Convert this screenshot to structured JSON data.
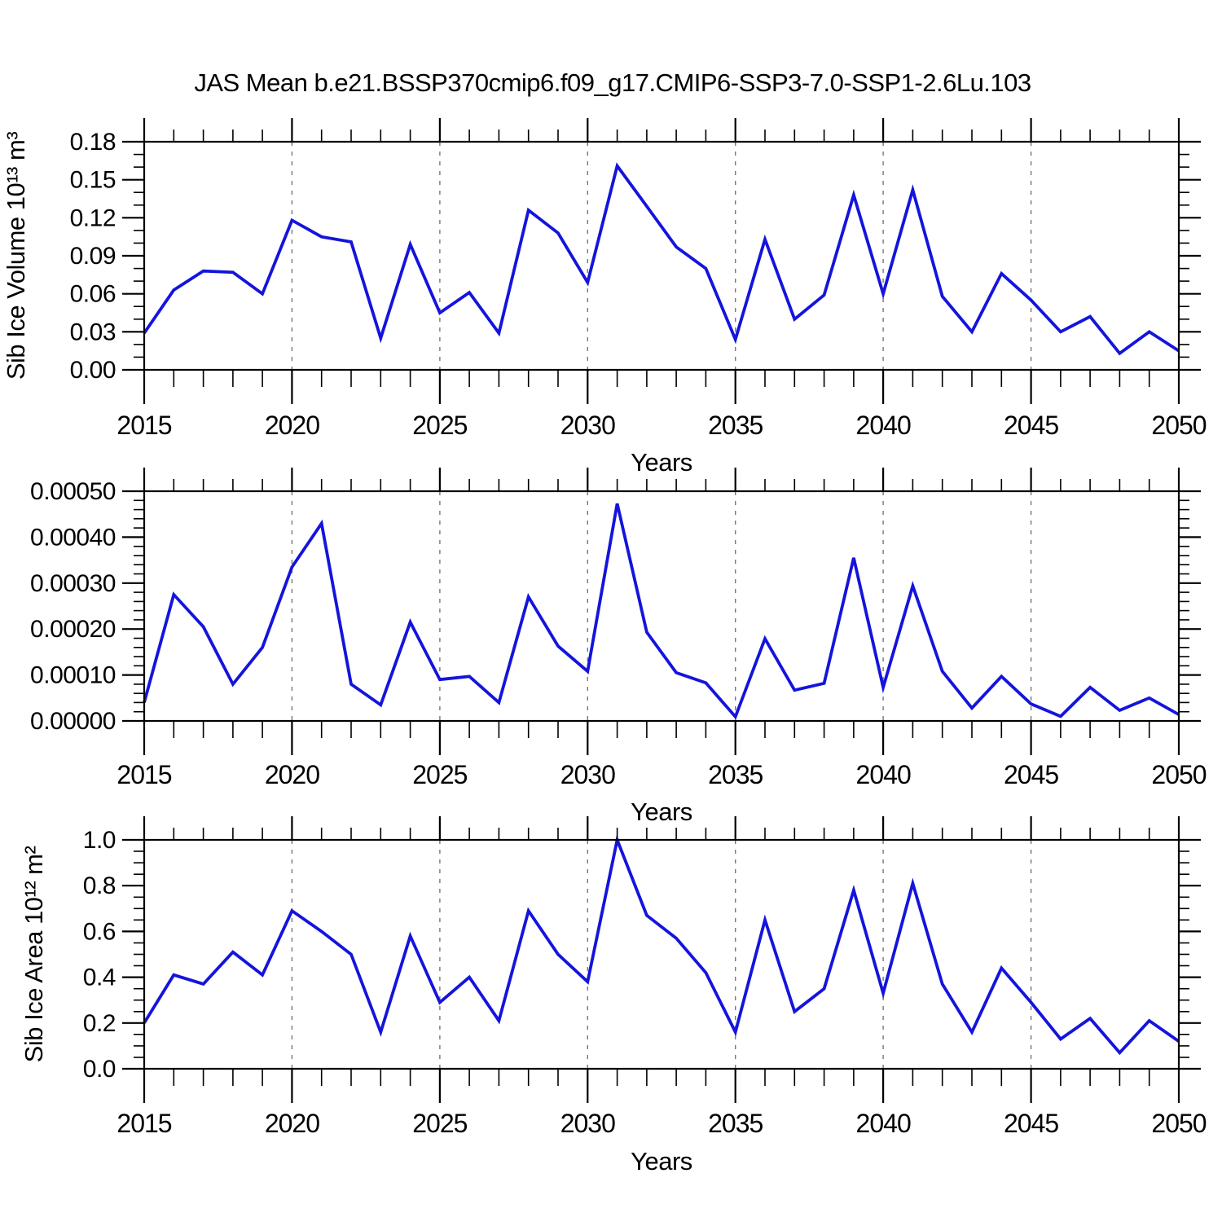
{
  "figure": {
    "title": "JAS Mean b.e21.BSSP370cmip6.f09_g17.CMIP6-SSP3-7.0-SSP1-2.6Lu.103"
  },
  "colors": {
    "line": "#1414DC",
    "grid": "#777777",
    "axis": "#000000",
    "background": "#ffffff",
    "text": "#000000"
  },
  "chart_data": [
    {
      "type": "line",
      "name": "sib-ice-volume",
      "title": "",
      "ylabel": "Sib Ice Volume 10¹³ m³",
      "xlabel": "Years",
      "xlim": [
        2015,
        2050
      ],
      "ylim": [
        0,
        0.18
      ],
      "ytick_values": [
        0.0,
        0.03,
        0.06,
        0.09,
        0.12,
        0.15,
        0.18
      ],
      "ytick_labels": [
        "0.00",
        "0.03",
        "0.06",
        "0.09",
        "0.12",
        "0.15",
        "0.18"
      ],
      "y_minor_step": 0.01,
      "xtick_values": [
        2015,
        2020,
        2025,
        2030,
        2035,
        2040,
        2045,
        2050
      ],
      "xtick_labels": [
        "2015",
        "2020",
        "2025",
        "2030",
        "2035",
        "2040",
        "2045",
        "2050"
      ],
      "x_minor_step": 1,
      "gridlines_x": [
        2020,
        2025,
        2030,
        2035,
        2040,
        2045
      ],
      "grid": "dashed-vertical",
      "legend": "none",
      "x": [
        2015,
        2016,
        2017,
        2018,
        2019,
        2020,
        2021,
        2022,
        2023,
        2024,
        2025,
        2026,
        2027,
        2028,
        2029,
        2030,
        2031,
        2032,
        2033,
        2034,
        2035,
        2036,
        2037,
        2038,
        2039,
        2040,
        2041,
        2042,
        2043,
        2044,
        2045,
        2046,
        2047,
        2048,
        2049,
        2050
      ],
      "values": [
        0.029,
        0.063,
        0.078,
        0.077,
        0.06,
        0.118,
        0.105,
        0.101,
        0.025,
        0.099,
        0.045,
        0.061,
        0.029,
        0.126,
        0.108,
        0.069,
        0.161,
        0.129,
        0.097,
        0.08,
        0.024,
        0.103,
        0.04,
        0.059,
        0.138,
        0.06,
        0.142,
        0.058,
        0.03,
        0.076,
        0.055,
        0.03,
        0.042,
        0.013,
        0.03,
        0.015
      ]
    },
    {
      "type": "line",
      "name": "sib-ice-middle-series",
      "title": "",
      "ylabel": "",
      "xlabel": "Years",
      "xlim": [
        2015,
        2050
      ],
      "ylim": [
        0,
        0.0005
      ],
      "ytick_values": [
        0.0,
        0.0001,
        0.0002,
        0.0003,
        0.0004,
        0.0005
      ],
      "ytick_labels": [
        "0.00000",
        "0.00010",
        "0.00020",
        "0.00030",
        "0.00040",
        "0.00050"
      ],
      "y_minor_step": 2e-05,
      "xtick_values": [
        2015,
        2020,
        2025,
        2030,
        2035,
        2040,
        2045,
        2050
      ],
      "xtick_labels": [
        "2015",
        "2020",
        "2025",
        "2030",
        "2035",
        "2040",
        "2045",
        "2050"
      ],
      "x_minor_step": 1,
      "gridlines_x": [
        2020,
        2025,
        2030,
        2035,
        2040,
        2045
      ],
      "grid": "dashed-vertical",
      "legend": "none",
      "x": [
        2015,
        2016,
        2017,
        2018,
        2019,
        2020,
        2021,
        2022,
        2023,
        2024,
        2025,
        2026,
        2027,
        2028,
        2029,
        2030,
        2031,
        2032,
        2033,
        2034,
        2035,
        2036,
        2037,
        2038,
        2039,
        2040,
        2041,
        2042,
        2043,
        2044,
        2045,
        2046,
        2047,
        2048,
        2049,
        2050
      ],
      "values": [
        4e-05,
        0.000275,
        0.000205,
        8e-05,
        0.00016,
        0.000335,
        0.00043,
        8e-05,
        3.5e-05,
        0.000215,
        9e-05,
        9.7e-05,
        4e-05,
        0.00027,
        0.000163,
        0.000108,
        0.000473,
        0.000193,
        0.000105,
        8.3e-05,
        9e-06,
        0.000179,
        6.7e-05,
        8.2e-05,
        0.000355,
        7.3e-05,
        0.000294,
        0.000108,
        2.8e-05,
        9.7e-05,
        3.7e-05,
        1e-05,
        7.3e-05,
        2.3e-05,
        5e-05,
        1.4e-05
      ]
    },
    {
      "type": "line",
      "name": "sib-ice-area",
      "title": "",
      "ylabel": "Sib Ice Area 10¹² m²",
      "xlabel": "Years",
      "xlim": [
        2015,
        2050
      ],
      "ylim": [
        0,
        1.0
      ],
      "ytick_values": [
        0.0,
        0.2,
        0.4,
        0.6,
        0.8,
        1.0
      ],
      "ytick_labels": [
        "0.0",
        "0.2",
        "0.4",
        "0.6",
        "0.8",
        "1.0"
      ],
      "y_minor_step": 0.05,
      "xtick_values": [
        2015,
        2020,
        2025,
        2030,
        2035,
        2040,
        2045,
        2050
      ],
      "xtick_labels": [
        "2015",
        "2020",
        "2025",
        "2030",
        "2035",
        "2040",
        "2045",
        "2050"
      ],
      "x_minor_step": 1,
      "gridlines_x": [
        2020,
        2025,
        2030,
        2035,
        2040,
        2045
      ],
      "grid": "dashed-vertical",
      "legend": "none",
      "x": [
        2015,
        2016,
        2017,
        2018,
        2019,
        2020,
        2021,
        2022,
        2023,
        2024,
        2025,
        2026,
        2027,
        2028,
        2029,
        2030,
        2031,
        2032,
        2033,
        2034,
        2035,
        2036,
        2037,
        2038,
        2039,
        2040,
        2041,
        2042,
        2043,
        2044,
        2045,
        2046,
        2047,
        2048,
        2049,
        2050
      ],
      "values": [
        0.2,
        0.41,
        0.37,
        0.51,
        0.41,
        0.69,
        0.6,
        0.5,
        0.16,
        0.58,
        0.29,
        0.4,
        0.21,
        0.69,
        0.5,
        0.38,
        1.0,
        0.67,
        0.57,
        0.42,
        0.16,
        0.65,
        0.25,
        0.35,
        0.78,
        0.33,
        0.81,
        0.37,
        0.16,
        0.44,
        0.29,
        0.13,
        0.22,
        0.07,
        0.21,
        0.12
      ]
    }
  ]
}
